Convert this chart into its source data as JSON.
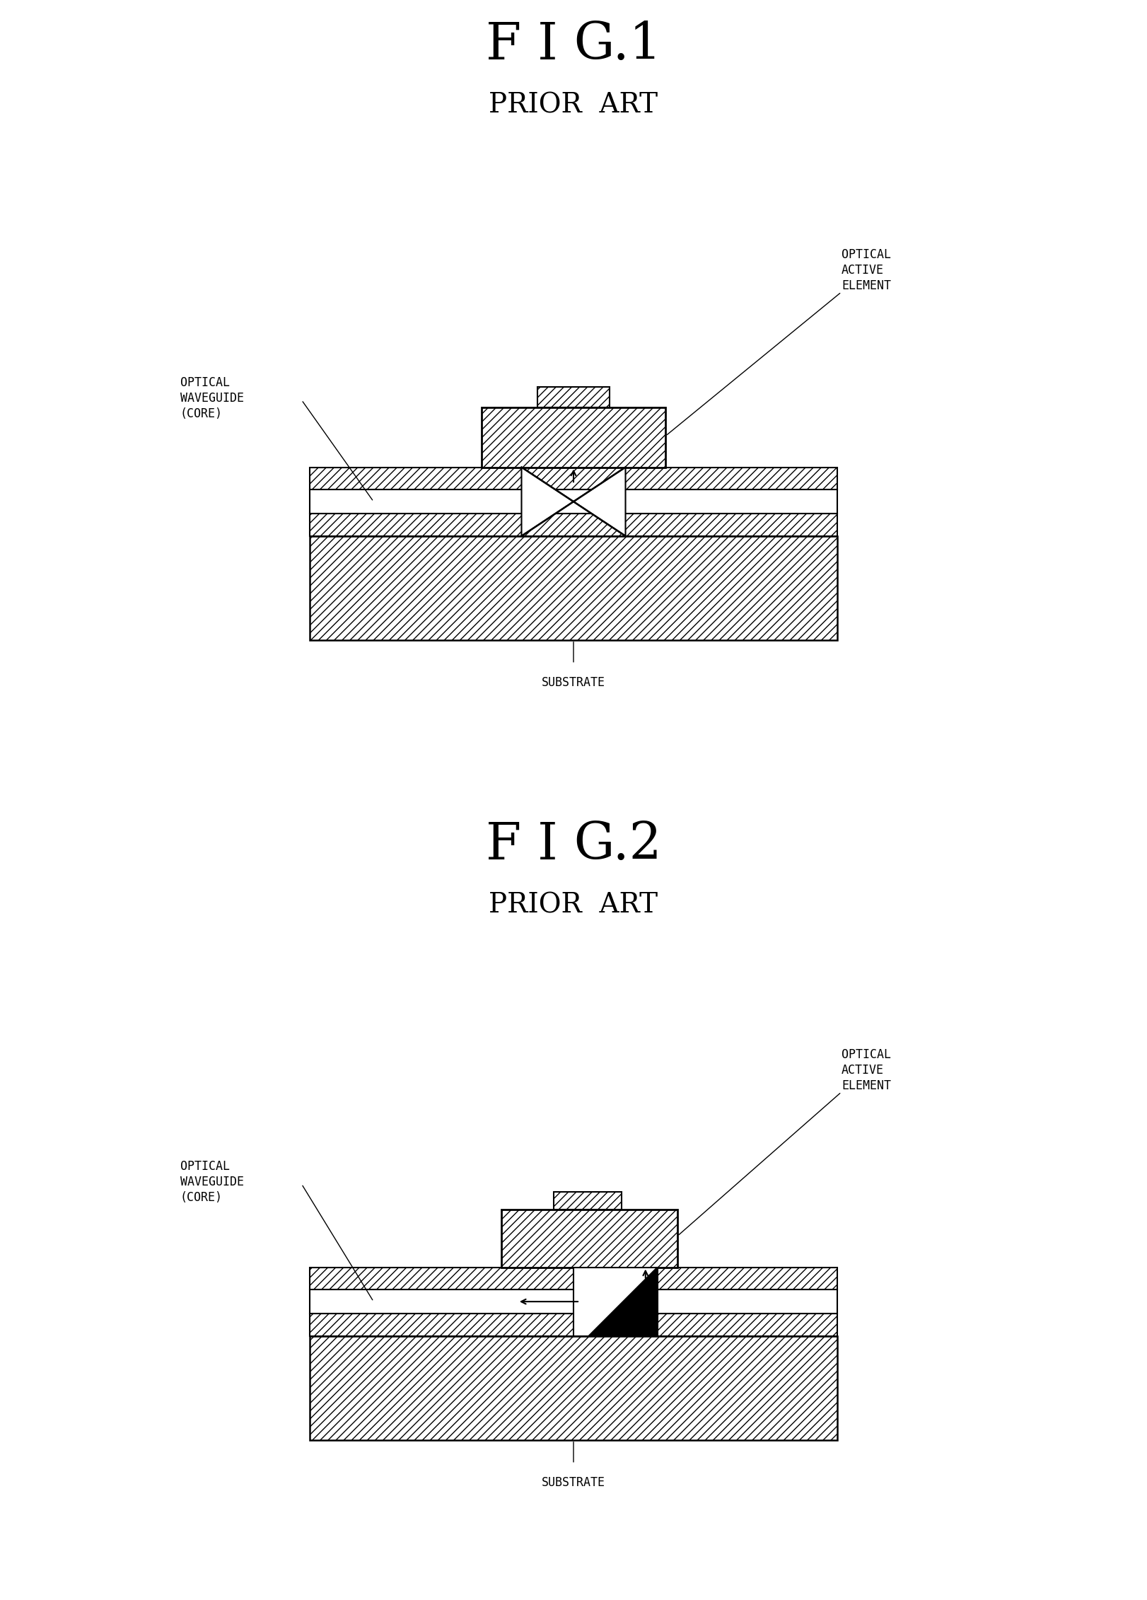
{
  "fig1_title": "F I G.1",
  "fig1_subtitle": "PRIOR  ART",
  "fig2_title": "F I G.2",
  "fig2_subtitle": "PRIOR  ART",
  "bg_color": "#ffffff",
  "line_color": "#000000",
  "label_optical_waveguide": "OPTICAL\nWAVEGUIDE\n(CORE)",
  "label_optical_active": "OPTICAL\nACTIVE\nELEMENT",
  "label_substrate": "SUBSTRATE",
  "title_fontsize": 52,
  "subtitle_fontsize": 28,
  "label_fontsize": 12
}
